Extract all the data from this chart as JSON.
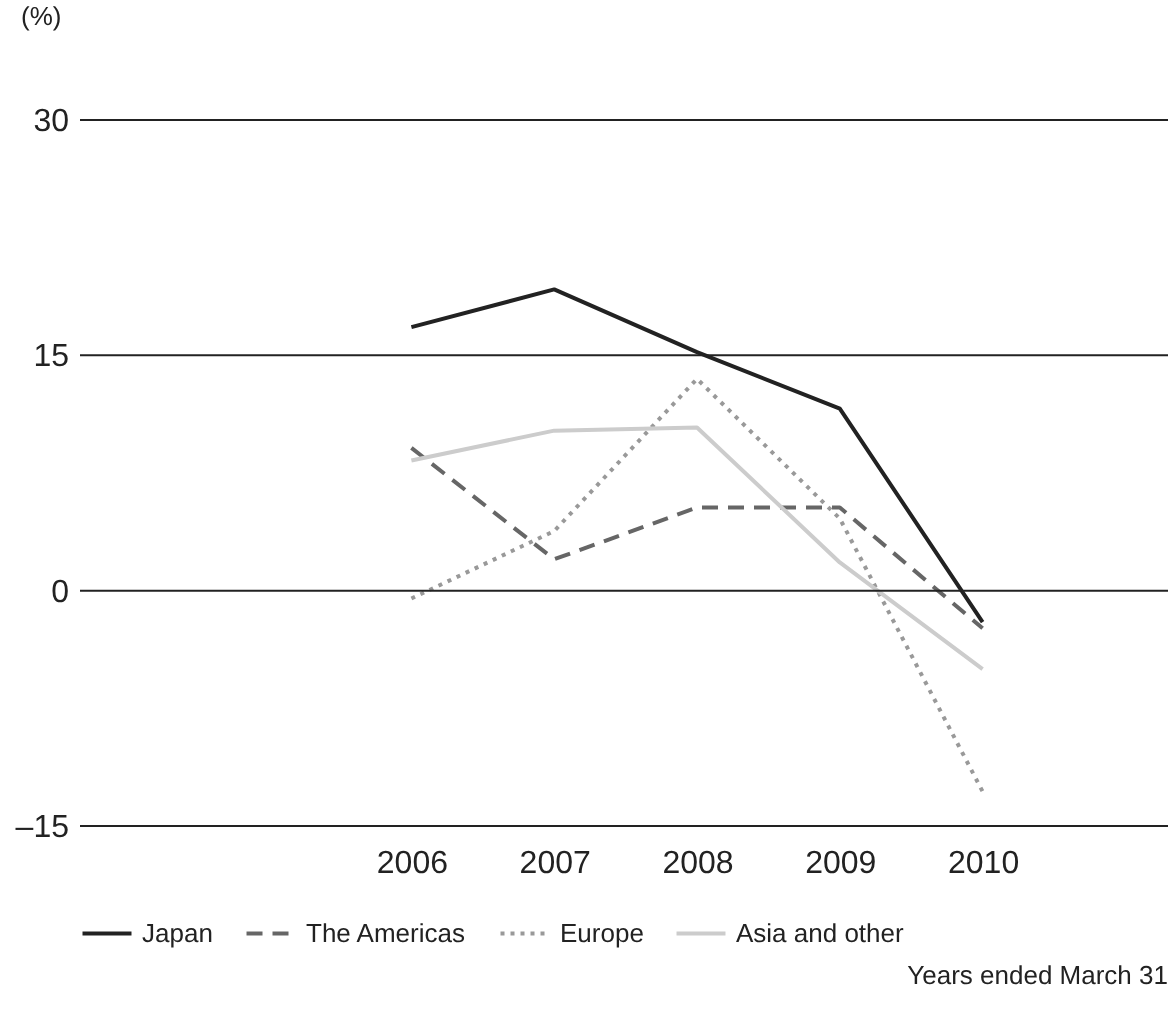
{
  "chart_data": {
    "type": "line",
    "ylabel": "(%)",
    "categories": [
      "2006",
      "2007",
      "2008",
      "2009",
      "2010"
    ],
    "series": [
      {
        "name": "Japan",
        "color": "#222222",
        "line_style": "solid",
        "values": [
          16.8,
          19.2,
          15.2,
          11.6,
          -2.0
        ]
      },
      {
        "name": "The Americas",
        "color": "#666666",
        "line_style": "dashed",
        "values": [
          9.1,
          2.0,
          5.3,
          5.3,
          -2.4
        ]
      },
      {
        "name": "Europe",
        "color": "#999999",
        "line_style": "dotted",
        "values": [
          -0.5,
          3.8,
          13.5,
          4.6,
          -12.8
        ]
      },
      {
        "name": "Asia and other",
        "color": "#cccccc",
        "line_style": "solid",
        "values": [
          8.3,
          10.2,
          10.4,
          1.8,
          -5.0
        ]
      }
    ],
    "ylim": [
      -15,
      30
    ],
    "yticks": [
      {
        "value": -15,
        "label": "–15"
      },
      0,
      15,
      30
    ],
    "grid": "y",
    "legend": "bottom",
    "marker": "none",
    "annotations": [
      "Years ended March 31"
    ]
  }
}
